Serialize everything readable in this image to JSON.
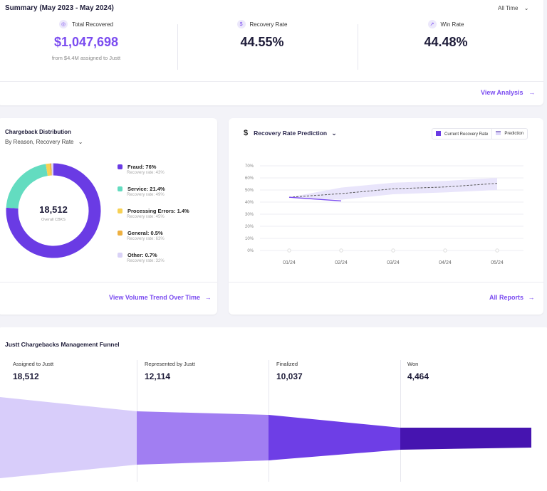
{
  "summary": {
    "title": "Summary (May 2023 - May 2024)",
    "period": "All Time",
    "kpis": [
      {
        "label": "Total Recovered",
        "value": "$1,047,698",
        "note": "from $4.4M assigned to Justt",
        "icon": "coins-icon"
      },
      {
        "label": "Recovery Rate",
        "value": "44.55%",
        "icon": "dollar-icon"
      },
      {
        "label": "Win Rate",
        "value": "44.48%",
        "icon": "trend-up-icon"
      }
    ],
    "link": "View Analysis"
  },
  "distribution": {
    "title": "Chargeback Distribution",
    "filter": "By Reason, Recovery Rate",
    "total": "18,512",
    "total_label": "Overall CBKS",
    "items": [
      {
        "label": "Fraud: 76%",
        "sub": "Recovery rate: 43%",
        "pct": 76,
        "color": "#6a3be4"
      },
      {
        "label": "Service: 21.4%",
        "sub": "Recovery rate: 49%",
        "pct": 21.4,
        "color": "#63dcc0"
      },
      {
        "label": "Processing Errors: 1.4%",
        "sub": "Recovery rate: 45%",
        "pct": 1.4,
        "color": "#f7d154"
      },
      {
        "label": "General: 0.5%",
        "sub": "Recovery rate: 63%",
        "pct": 0.5,
        "color": "#eeb041"
      },
      {
        "label": "Other: 0.7%",
        "sub": "Recovery rate: 32%",
        "pct": 0.7,
        "color": "#d9d2f7"
      }
    ],
    "link": "View Volume Trend Over Time"
  },
  "prediction": {
    "title": "Recovery Rate Prediction",
    "legend": [
      "Current Recovery Rate",
      "Prediction"
    ],
    "link": "All Reports",
    "chart_data": {
      "type": "line",
      "x": [
        "01/24",
        "02/24",
        "03/24",
        "04/24",
        "05/24"
      ],
      "yticks": [
        "0%",
        "10%",
        "20%",
        "30%",
        "40%",
        "50%",
        "60%",
        "70%"
      ],
      "ylim": [
        0,
        70
      ],
      "series": [
        {
          "name": "Current Recovery Rate",
          "values": [
            44,
            41,
            null,
            null,
            null
          ],
          "color": "#7b4cf0"
        },
        {
          "name": "Prediction",
          "values": [
            44,
            47,
            51,
            52.5,
            55.5
          ],
          "lower": [
            44,
            42,
            46.5,
            48,
            50
          ],
          "upper": [
            44,
            52,
            56,
            57.5,
            60
          ],
          "color": "#555"
        }
      ]
    }
  },
  "funnel": {
    "title": "Justt Chargebacks Management Funnel",
    "stages": [
      {
        "label": "Assigned to Justt",
        "value": "18,512",
        "color": "#d8cdfa"
      },
      {
        "label": "Represented by Justt",
        "value": "12,114",
        "color": "#a17ef2"
      },
      {
        "label": "Finalized",
        "value": "10,037",
        "color": "#6e3ee6"
      },
      {
        "label": "Won",
        "value": "4,464",
        "color": "#4614b0"
      }
    ]
  }
}
